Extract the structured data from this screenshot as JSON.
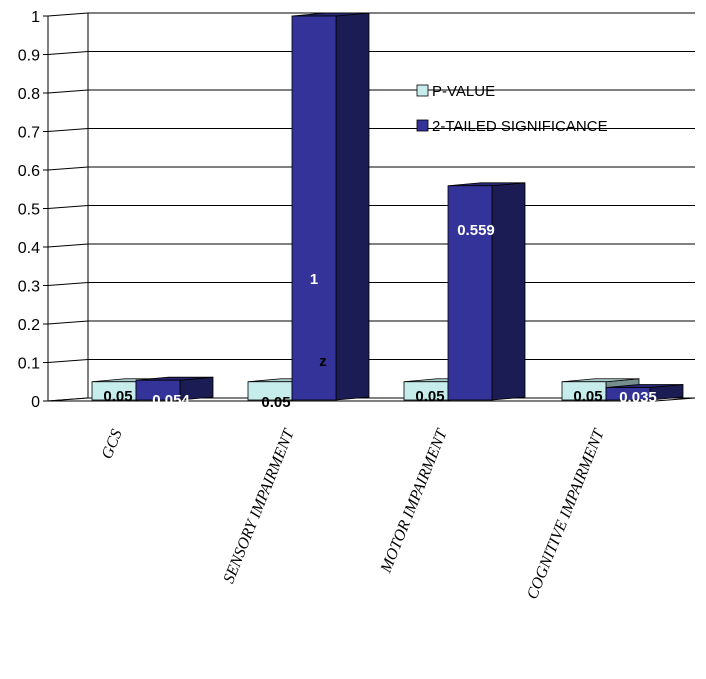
{
  "chart_data": {
    "type": "bar",
    "categories": [
      "GCS",
      "SENSORY IMPAIRMENT",
      "MOTOR IMPAIRMENT",
      "COGNITIVE IMPAIRMENT"
    ],
    "series": [
      {
        "name": "P-VALUE",
        "values": [
          0.05,
          0.05,
          0.05,
          0.05
        ],
        "labels": [
          "0.05",
          "0.05",
          "0.05",
          "0.05"
        ]
      },
      {
        "name": "2-TAILED SIGNIFICANCE",
        "values": [
          0.054,
          1,
          0.559,
          0.035
        ],
        "labels": [
          "0.054",
          "1",
          "0.559",
          "0.035"
        ]
      }
    ],
    "ylim": [
      0,
      1
    ],
    "yticks": [
      "0",
      "0.1",
      "0.2",
      "0.3",
      "0.4",
      "0.5",
      "0.6",
      "0.7",
      "0.8",
      "0.9",
      "1"
    ],
    "grid": true,
    "legend": "right",
    "annotation": "z",
    "colors": {
      "p_value": "#c6ecec",
      "significance": "#333399"
    }
  }
}
